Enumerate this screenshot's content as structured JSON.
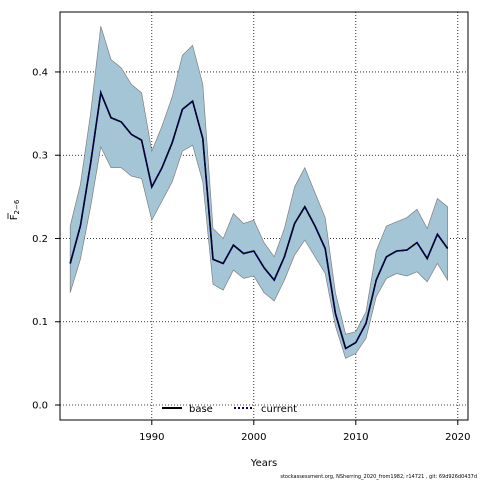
{
  "chart_data": {
    "type": "line",
    "xlabel": "Years",
    "ylabel_main": "F",
    "ylabel_sub": "2−6",
    "xlim": [
      1981,
      2021
    ],
    "ylim": [
      -0.018,
      0.472
    ],
    "xticks": [
      1990,
      2000,
      2010,
      2020
    ],
    "yticks": [
      0.0,
      0.1,
      0.2,
      0.3,
      0.4
    ],
    "ytick_labels": [
      "0.0",
      "0.1",
      "0.2",
      "0.3",
      "0.4"
    ],
    "grid": true,
    "legend_position": "bottom-center",
    "legend": [
      {
        "label": "base",
        "style": "solid",
        "color": "#000000"
      },
      {
        "label": "current",
        "style": "dotted",
        "color": "#00006b"
      }
    ],
    "band_color": "#a3c5d6",
    "band_edge_color": "#7f7f7f",
    "x": [
      1982,
      1983,
      1984,
      1985,
      1986,
      1987,
      1988,
      1989,
      1990,
      1991,
      1992,
      1993,
      1994,
      1995,
      1996,
      1997,
      1998,
      1999,
      2000,
      2001,
      2002,
      2003,
      2004,
      2005,
      2006,
      2007,
      2008,
      2009,
      2010,
      2011,
      2012,
      2013,
      2014,
      2015,
      2016,
      2017,
      2018,
      2019
    ],
    "series": [
      {
        "name": "base",
        "values": [
          0.17,
          0.215,
          0.29,
          0.375,
          0.345,
          0.34,
          0.325,
          0.318,
          0.262,
          0.285,
          0.315,
          0.355,
          0.365,
          0.32,
          0.175,
          0.17,
          0.192,
          0.182,
          0.185,
          0.165,
          0.15,
          0.178,
          0.218,
          0.238,
          0.215,
          0.188,
          0.11,
          0.068,
          0.075,
          0.098,
          0.15,
          0.178,
          0.185,
          0.186,
          0.195,
          0.176,
          0.205,
          0.188
        ]
      },
      {
        "name": "current",
        "values": [
          0.17,
          0.215,
          0.29,
          0.375,
          0.345,
          0.34,
          0.325,
          0.318,
          0.262,
          0.285,
          0.315,
          0.355,
          0.365,
          0.32,
          0.175,
          0.17,
          0.192,
          0.182,
          0.185,
          0.165,
          0.15,
          0.178,
          0.218,
          0.238,
          0.215,
          0.188,
          0.11,
          0.068,
          0.075,
          0.098,
          0.15,
          0.178,
          0.185,
          0.186,
          0.195,
          0.176,
          0.205,
          0.188
        ]
      }
    ],
    "band_upper": [
      0.215,
      0.265,
      0.35,
      0.455,
      0.415,
      0.405,
      0.385,
      0.375,
      0.305,
      0.335,
      0.37,
      0.42,
      0.432,
      0.385,
      0.212,
      0.2,
      0.23,
      0.218,
      0.222,
      0.195,
      0.178,
      0.212,
      0.262,
      0.285,
      0.255,
      0.225,
      0.135,
      0.085,
      0.088,
      0.112,
      0.185,
      0.215,
      0.22,
      0.225,
      0.235,
      0.212,
      0.248,
      0.238
    ],
    "band_lower": [
      0.135,
      0.175,
      0.238,
      0.31,
      0.285,
      0.285,
      0.275,
      0.272,
      0.222,
      0.245,
      0.268,
      0.305,
      0.312,
      0.268,
      0.145,
      0.138,
      0.162,
      0.152,
      0.155,
      0.135,
      0.125,
      0.15,
      0.18,
      0.198,
      0.178,
      0.158,
      0.095,
      0.056,
      0.062,
      0.08,
      0.13,
      0.152,
      0.158,
      0.155,
      0.16,
      0.148,
      0.17,
      0.15
    ]
  },
  "footer": "stockassessment.org, NSherring_2020_from1982, r14721 , git: 69d926d0437d"
}
